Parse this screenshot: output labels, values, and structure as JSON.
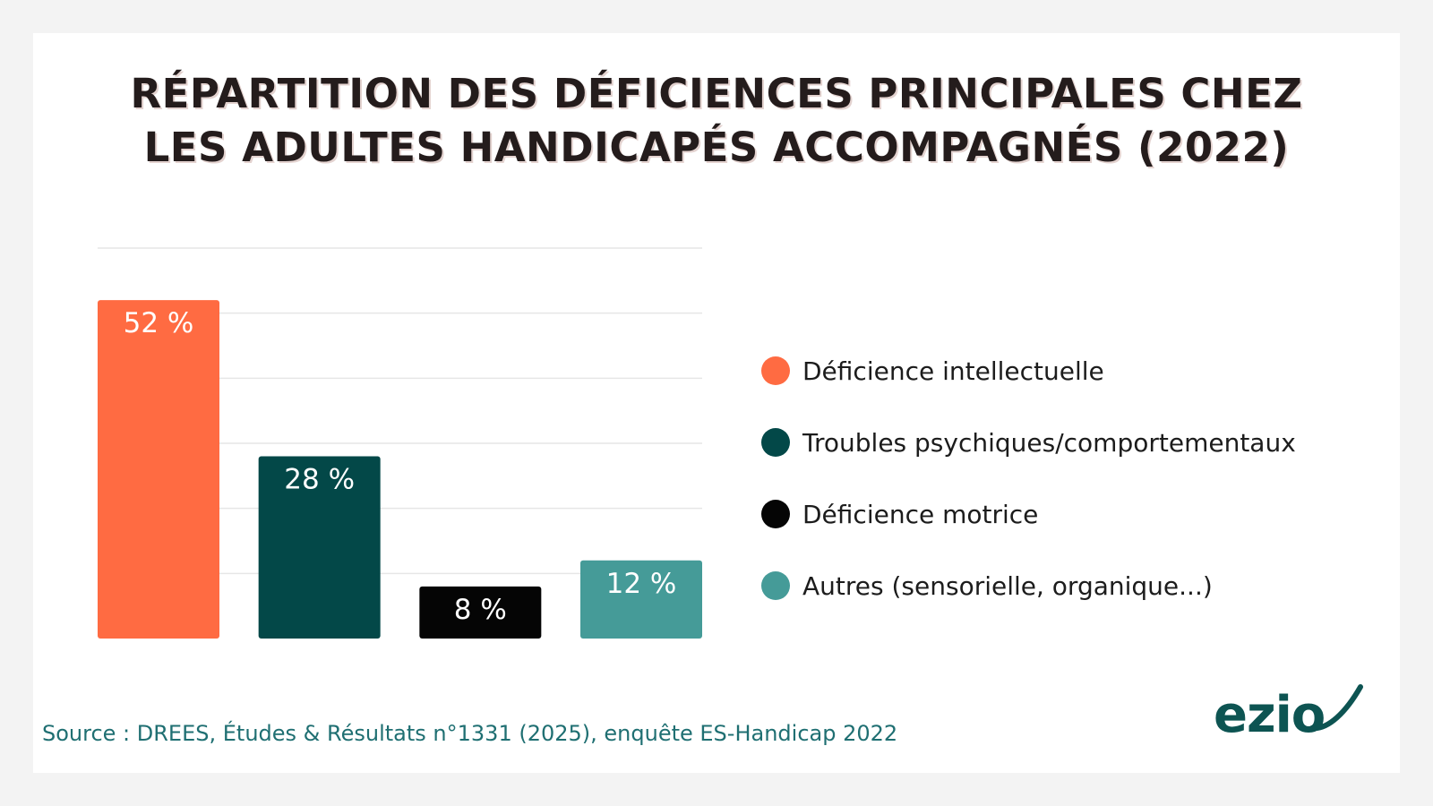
{
  "title_lines": [
    "RÉPARTITION DES DÉFICIENCES PRINCIPALES CHEZ",
    "LES ADULTES HANDICAPÉS ACCOMPAGNÉS (2022)"
  ],
  "source": "Source : DREES, Études & Résultats n°1331 (2025), enquête ES-Handicap 2022",
  "logo_text": "ezio",
  "colors": {
    "orange": "#ff6b42",
    "dark_teal": "#034848",
    "black": "#050505",
    "light_teal": "#459b98",
    "grid": "#e6e6e6",
    "brand": "#0d5452"
  },
  "chart_data": {
    "type": "bar",
    "title": "RÉPARTITION DES DÉFICIENCES PRINCIPALES CHEZ LES ADULTES HANDICAPÉS ACCOMPAGNÉS (2022)",
    "categories": [
      "Déficience intellectuelle",
      "Troubles psychiques/comportementaux",
      "Déficience motrice",
      "Autres (sensorielle, organique...)"
    ],
    "values": [
      52,
      28,
      8,
      12
    ],
    "value_labels": [
      "52 %",
      "28 %",
      "8 %",
      "12 %"
    ],
    "bar_colors": [
      "#ff6b42",
      "#034848",
      "#050505",
      "#459b98"
    ],
    "ylim": [
      0,
      60
    ],
    "grid": true,
    "legend": "right",
    "xlabel": "",
    "ylabel": ""
  }
}
